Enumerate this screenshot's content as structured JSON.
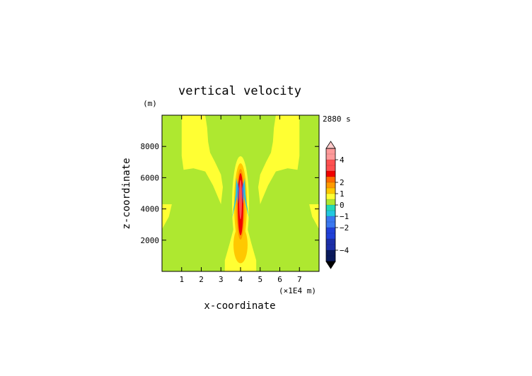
{
  "chart_data": {
    "type": "heatmap",
    "title": "vertical velocity",
    "xlabel": "x-coordinate",
    "ylabel": "z-coordinate",
    "x_unit_label": "(×1E4 m)",
    "y_unit_label": "(m)",
    "time_label": "2880 s",
    "xlim": [
      0,
      8
    ],
    "ylim": [
      0,
      10000
    ],
    "x_ticks": [
      "1",
      "2",
      "3",
      "4",
      "5",
      "6",
      "7"
    ],
    "y_ticks": [
      "2000",
      "4000",
      "6000",
      "8000"
    ],
    "colorbar": {
      "range": [
        -5,
        5
      ],
      "tick_labels": [
        "4",
        "2",
        "1",
        "0",
        "−1",
        "−2",
        "−4"
      ],
      "tick_values": [
        4,
        2,
        1,
        0,
        -1,
        -2,
        -4
      ],
      "colors": {
        "-5": "#0a1a5c",
        "-4": "#1c2fa8",
        "-3": "#2040d8",
        "-2": "#3a78f0",
        "-1": "#22c8e0",
        "-0.5": "#22d8b8",
        "0": "#aee830",
        "0.5": "#ffff33",
        "1": "#ffc800",
        "1.5": "#ff9a00",
        "2": "#ff6a00",
        "2.5": "#f00000",
        "3": "#ff5050",
        "4": "#ff9a9a",
        "5": "#ffc8c8"
      }
    },
    "field_description_values": {
      "background_value": 0,
      "updraft_max": 3.5,
      "downdraft_min": -1.5
    }
  }
}
